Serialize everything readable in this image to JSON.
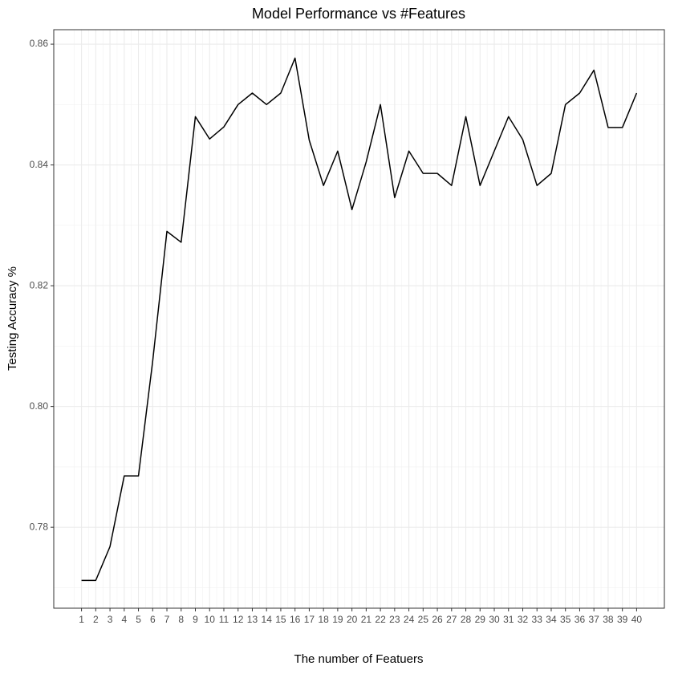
{
  "chart_data": {
    "type": "line",
    "title": "Model Performance vs #Features",
    "x_label": "The number of Featuers",
    "y_label": "Testing Accuracy %",
    "x": [
      1,
      2,
      3,
      4,
      5,
      6,
      7,
      8,
      9,
      10,
      11,
      12,
      13,
      14,
      15,
      16,
      17,
      18,
      19,
      20,
      21,
      22,
      23,
      24,
      25,
      26,
      27,
      28,
      29,
      30,
      31,
      32,
      33,
      34,
      35,
      36,
      37,
      38,
      39,
      40
    ],
    "values": [
      0.7712,
      0.7712,
      0.7768,
      0.7885,
      0.7885,
      0.8075,
      0.829,
      0.8272,
      0.848,
      0.8443,
      0.8463,
      0.85,
      0.8519,
      0.85,
      0.8519,
      0.8577,
      0.8441,
      0.8366,
      0.8423,
      0.8326,
      0.8405,
      0.85,
      0.8346,
      0.8423,
      0.8386,
      0.8386,
      0.8366,
      0.848,
      0.8366,
      0.8423,
      0.848,
      0.8442,
      0.8366,
      0.8386,
      0.85,
      0.8519,
      0.8557,
      0.8462,
      0.8462,
      0.8519
    ],
    "color": "#000000",
    "xlim": [
      -0.95,
      41.95
    ],
    "xticks": [
      1,
      2,
      3,
      4,
      5,
      6,
      7,
      8,
      9,
      10,
      11,
      12,
      13,
      14,
      15,
      16,
      17,
      18,
      19,
      20,
      21,
      22,
      23,
      24,
      25,
      26,
      27,
      28,
      29,
      30,
      31,
      32,
      33,
      34,
      35,
      36,
      37,
      38,
      39,
      40
    ],
    "ylim": [
      0.7666,
      0.8624
    ],
    "yticks": [
      0.78,
      {
        "value": 0.8,
        "label": "0.80"
      },
      0.82,
      0.84,
      0.86
    ],
    "grid": true
  }
}
